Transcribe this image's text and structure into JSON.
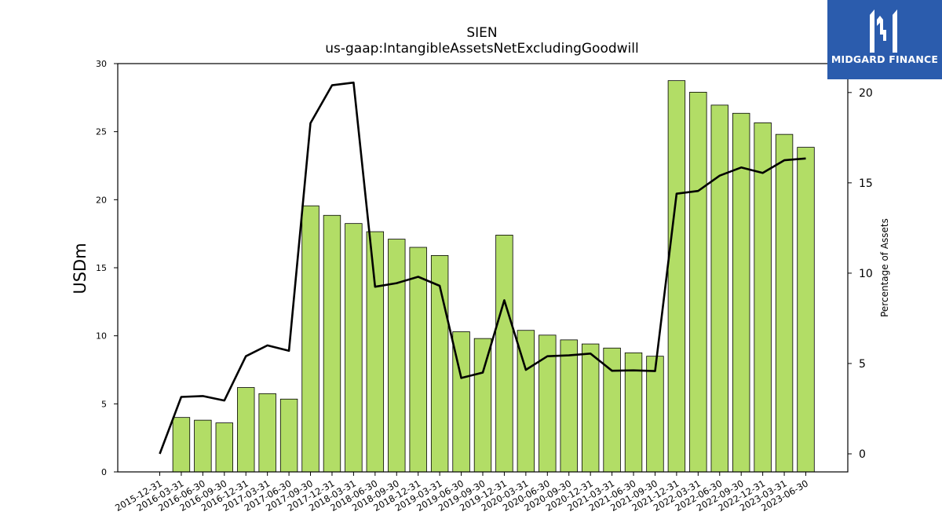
{
  "header": {
    "title": "SIEN",
    "subtitle": "us-gaap:IntangibleAssetsNetExcludingGoodwill"
  },
  "logo": {
    "text": "MIDGARD FINANCE",
    "icon": "midgard-finance-logo-icon",
    "background": "#2b5cad"
  },
  "chart_data": {
    "type": "bar",
    "categories": [
      "2015-12-31",
      "2016-03-31",
      "2016-06-30",
      "2016-09-30",
      "2016-12-31",
      "2017-03-31",
      "2017-06-30",
      "2017-09-30",
      "2017-12-31",
      "2018-03-31",
      "2018-06-30",
      "2018-09-30",
      "2018-12-31",
      "2019-03-31",
      "2019-06-30",
      "2019-09-30",
      "2019-12-31",
      "2020-03-31",
      "2020-06-30",
      "2020-09-30",
      "2020-12-31",
      "2021-03-31",
      "2021-06-30",
      "2021-09-30",
      "2021-12-31",
      "2022-03-31",
      "2022-06-30",
      "2022-09-30",
      "2022-12-31",
      "2023-03-31",
      "2023-06-30"
    ],
    "series": [
      {
        "type": "bar",
        "axis": "left",
        "color": "#b2dd66",
        "values": [
          0,
          4.0,
          3.8,
          3.6,
          6.2,
          5.75,
          5.35,
          19.55,
          18.85,
          18.25,
          17.65,
          17.1,
          16.5,
          15.9,
          10.3,
          9.8,
          17.4,
          10.4,
          10.05,
          9.7,
          9.4,
          9.1,
          8.75,
          8.5,
          28.75,
          27.9,
          26.95,
          26.35,
          25.65,
          24.8,
          23.85
        ]
      },
      {
        "type": "line",
        "axis": "right",
        "color": "#000000",
        "values": [
          0.0,
          3.15,
          3.2,
          2.95,
          5.4,
          6.0,
          5.7,
          18.3,
          20.4,
          20.55,
          9.25,
          9.45,
          9.8,
          9.3,
          4.2,
          4.5,
          8.5,
          4.65,
          5.4,
          5.45,
          5.55,
          4.6,
          4.62,
          4.58,
          14.4,
          14.55,
          15.4,
          15.85,
          15.55,
          16.25,
          16.35
        ]
      }
    ],
    "xlabel": "",
    "ylabel": "USDm",
    "y2label": "Percentage of Assets",
    "ylim": [
      0,
      30
    ],
    "y2lim": [
      -1,
      21.6
    ],
    "yticks": [
      0,
      5,
      10,
      15,
      20,
      25,
      30
    ],
    "y2ticks": [
      0,
      5,
      10,
      15,
      20
    ],
    "grid": false,
    "legend": "none"
  }
}
